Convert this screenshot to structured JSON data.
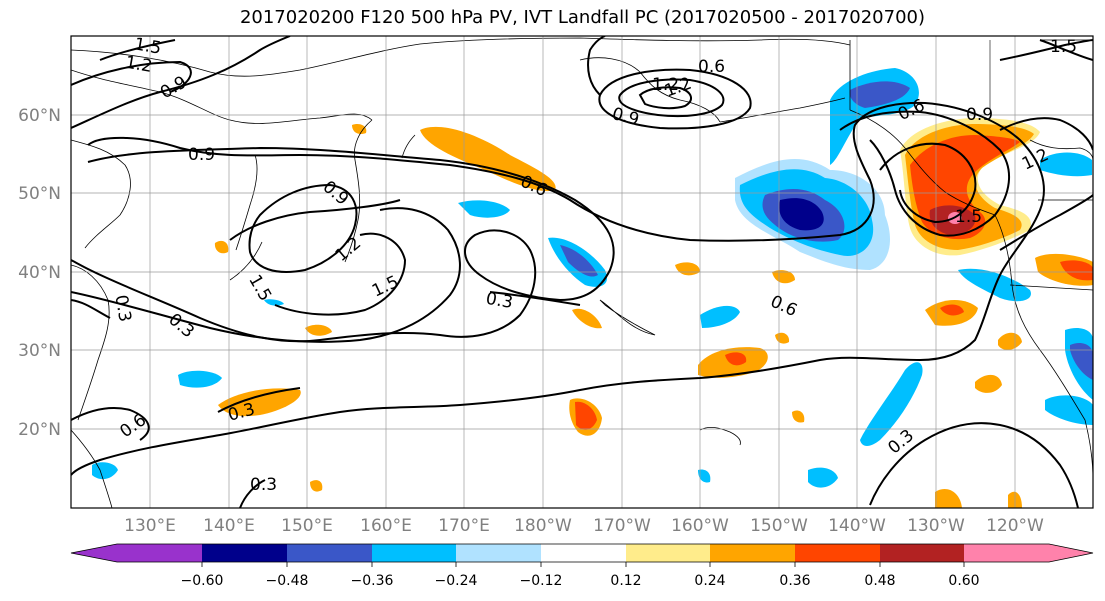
{
  "title": "2017020200 F120 500 hPa PV, IVT Landfall PC (2017020500 - 2017020700)",
  "map": {
    "lat_labels": [
      "60°N",
      "50°N",
      "40°N",
      "30°N",
      "20°N"
    ],
    "lon_labels": [
      "130°E",
      "140°E",
      "150°E",
      "160°E",
      "170°E",
      "180°W",
      "170°W",
      "160°W",
      "150°W",
      "140°W",
      "130°W",
      "120°W"
    ],
    "contour_labels": [
      "1.5",
      "1.2",
      "0.9",
      "0.9",
      "0.6",
      "0.9",
      "0.9",
      "1.2",
      "1.5",
      "0.6",
      "0.3",
      "0.6",
      "0.6",
      "0.9",
      "1.2",
      "1.5",
      "1.5",
      "0.3",
      "0.3",
      "0.3",
      "0.6",
      "0.3",
      "0.3",
      "1.5"
    ]
  },
  "colorbar": {
    "ticks": [
      "−0.60",
      "−0.48",
      "−0.36",
      "−0.24",
      "−0.12",
      "0.12",
      "0.24",
      "0.36",
      "0.48",
      "0.60"
    ],
    "colors": [
      "#9932cc",
      "#00008b",
      "#3a57c8",
      "#00bfff",
      "#b0e2ff",
      "#ffffff",
      "#ffec8b",
      "#ffa500",
      "#ff4500",
      "#b22222",
      "#ff82ab"
    ]
  }
}
